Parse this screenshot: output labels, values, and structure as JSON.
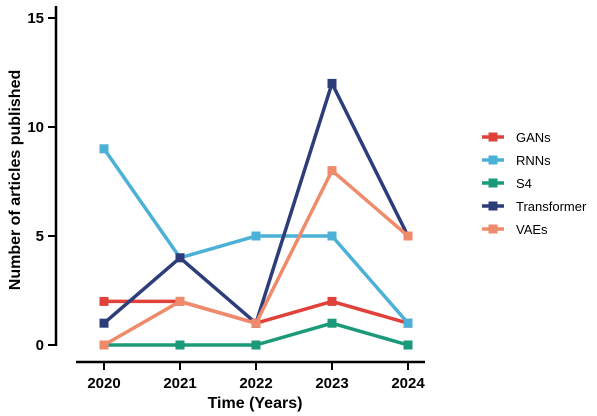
{
  "chart_data": {
    "type": "line",
    "x": [
      "2020",
      "2021",
      "2022",
      "2023",
      "2024"
    ],
    "xlabel": "Time (Years)",
    "ylabel": "Number of articles published",
    "ylim": [
      0,
      15
    ],
    "yticks": [
      "0",
      "5",
      "10",
      "15"
    ],
    "grid": false,
    "legend_position": "right",
    "series": [
      {
        "name": "GANs",
        "color": "#e0413a",
        "values": [
          2,
          2,
          1,
          2,
          1
        ]
      },
      {
        "name": "RNNs",
        "color": "#4bb1d6",
        "values": [
          9,
          4,
          5,
          5,
          1
        ]
      },
      {
        "name": "S4",
        "color": "#1a9a78",
        "values": [
          0,
          0,
          0,
          1,
          0
        ]
      },
      {
        "name": "Transformer",
        "color": "#2c3d7a",
        "values": [
          1,
          4,
          1,
          12,
          5
        ]
      },
      {
        "name": "VAEs",
        "color": "#ef8a6a",
        "values": [
          0,
          2,
          1,
          8,
          5
        ]
      }
    ]
  }
}
